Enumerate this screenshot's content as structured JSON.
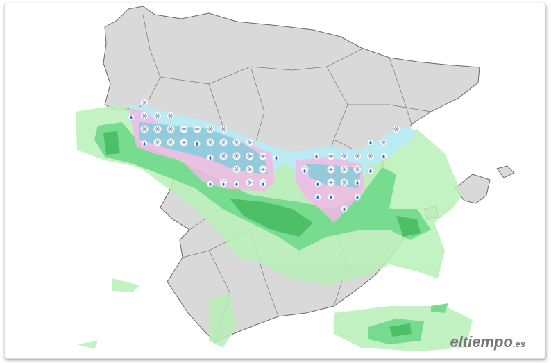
{
  "brand": {
    "name": "eltiempo",
    "suffix": ".es"
  }
}
